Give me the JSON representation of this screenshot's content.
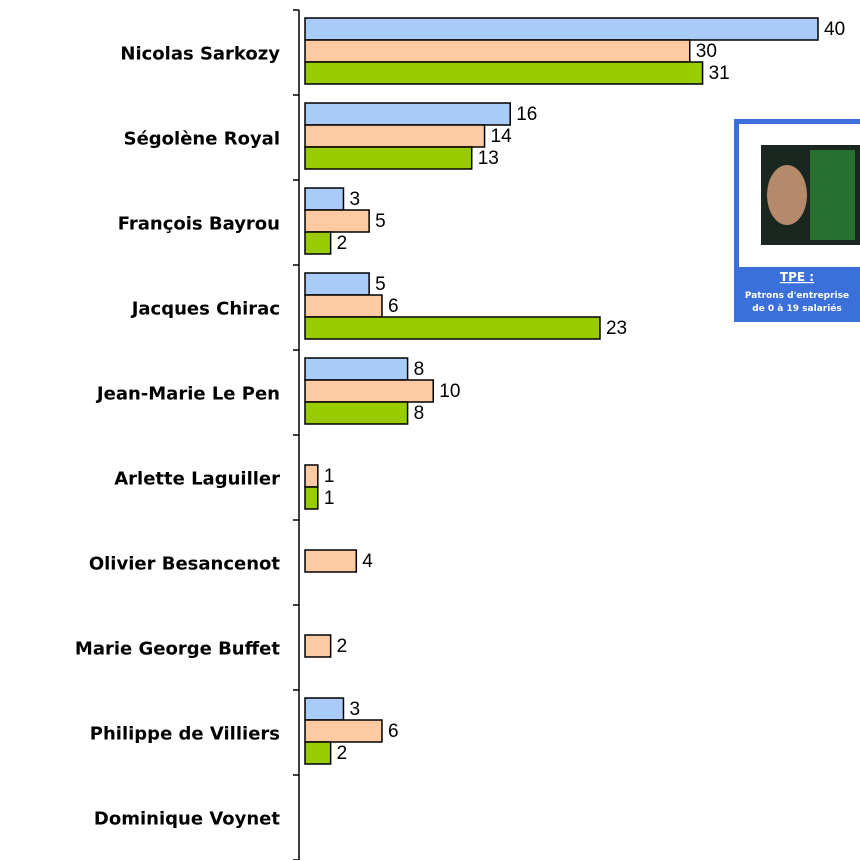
{
  "chart_data": {
    "type": "hbar",
    "categories": [
      "Nicolas Sarkozy",
      "Ségolène Royal",
      "François Bayrou",
      "Jacques Chirac",
      "Jean-Marie Le Pen",
      "Arlette Laguiller",
      "Olivier Besancenot",
      "Marie George Buffet",
      "Philippe de Villiers",
      "Dominique Voynet"
    ],
    "series": [
      {
        "color": "#a9cbf7",
        "values": [
          40,
          16,
          3,
          5,
          8,
          null,
          null,
          null,
          3,
          null
        ]
      },
      {
        "color": "#fdcaa2",
        "values": [
          30,
          14,
          5,
          6,
          10,
          1,
          4,
          2,
          6,
          null
        ]
      },
      {
        "color": "#99cc00",
        "values": [
          31,
          13,
          2,
          23,
          8,
          1,
          null,
          null,
          2,
          null
        ]
      }
    ],
    "xlim": [
      0,
      40
    ]
  },
  "inset": {
    "title": "TPE :",
    "lines": [
      "Patrons d'entreprise",
      "de 0 à 19 salariés"
    ]
  }
}
